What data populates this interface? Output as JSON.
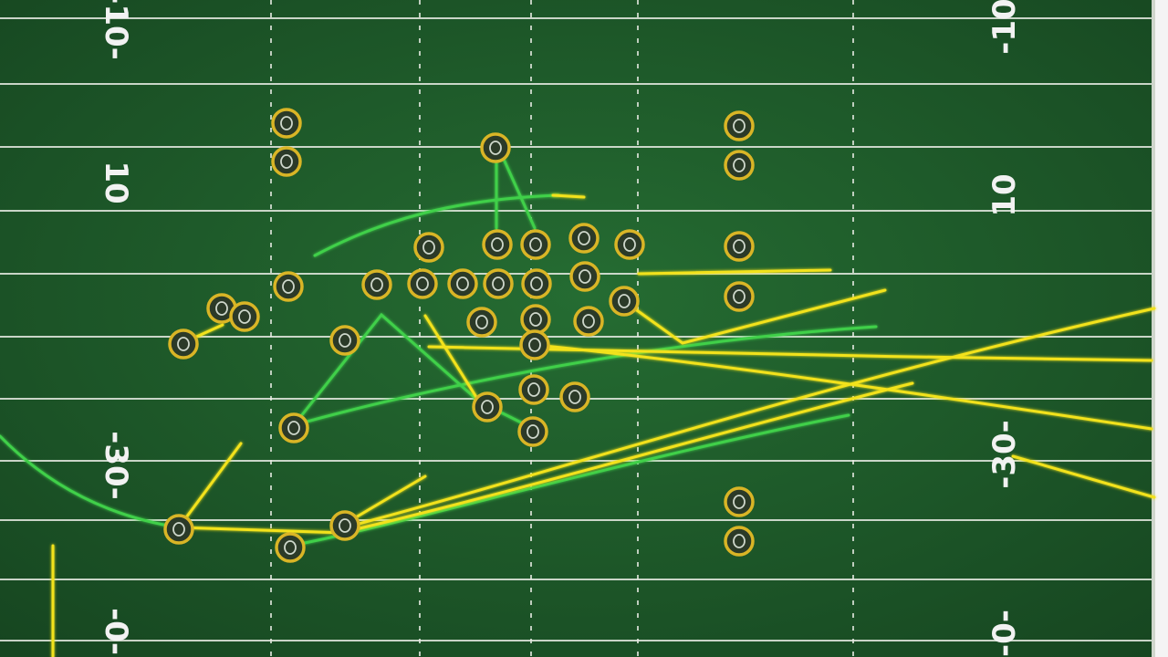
{
  "field": {
    "turf_color": "#1f5a2a",
    "line_color": "#e8ece4",
    "edge_color": "#f4f4f4"
  },
  "yard_numbers": {
    "left": [
      "-10-",
      "10",
      "-30-",
      "-0-"
    ],
    "right": [
      "-10-",
      "10",
      "-30-",
      "-0-"
    ]
  },
  "route_colors": {
    "green": "#3fd04a",
    "yellow": "#f2e21a"
  },
  "player_style": {
    "ring": "#d9b526",
    "fill": "#2b3a28",
    "glyph": "#cfd8cc"
  },
  "player_count": 40
}
